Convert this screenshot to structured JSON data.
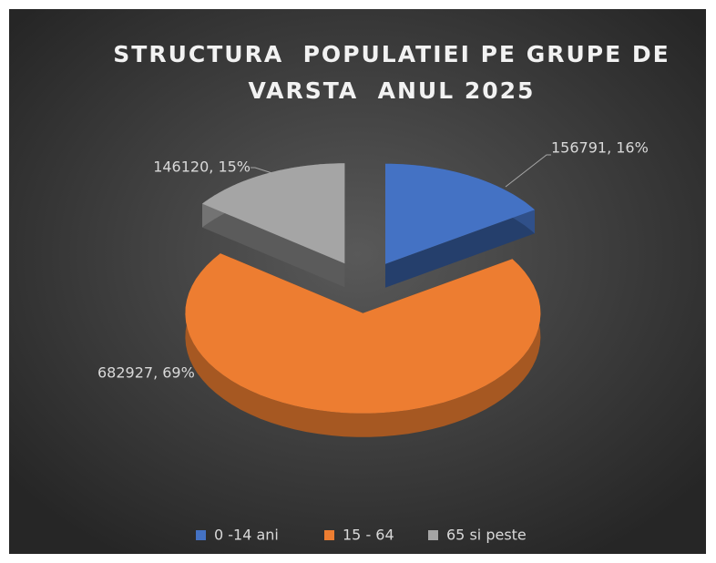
{
  "chart_data": {
    "type": "pie3d",
    "title": "STRUCTURA  POPULATIEI PE GRUPE DE VARSTA  ANUL 2025",
    "categories": [
      "0 -14 ani",
      "15 - 64",
      "65 si peste"
    ],
    "values": [
      156791,
      682927,
      146120
    ],
    "value_labels": [
      "156791, 16%",
      "682927, 69%",
      "146120, 15%"
    ],
    "colors": [
      "#4472c4",
      "#ed7d31",
      "#a5a5a5"
    ],
    "legend": "bottom"
  }
}
